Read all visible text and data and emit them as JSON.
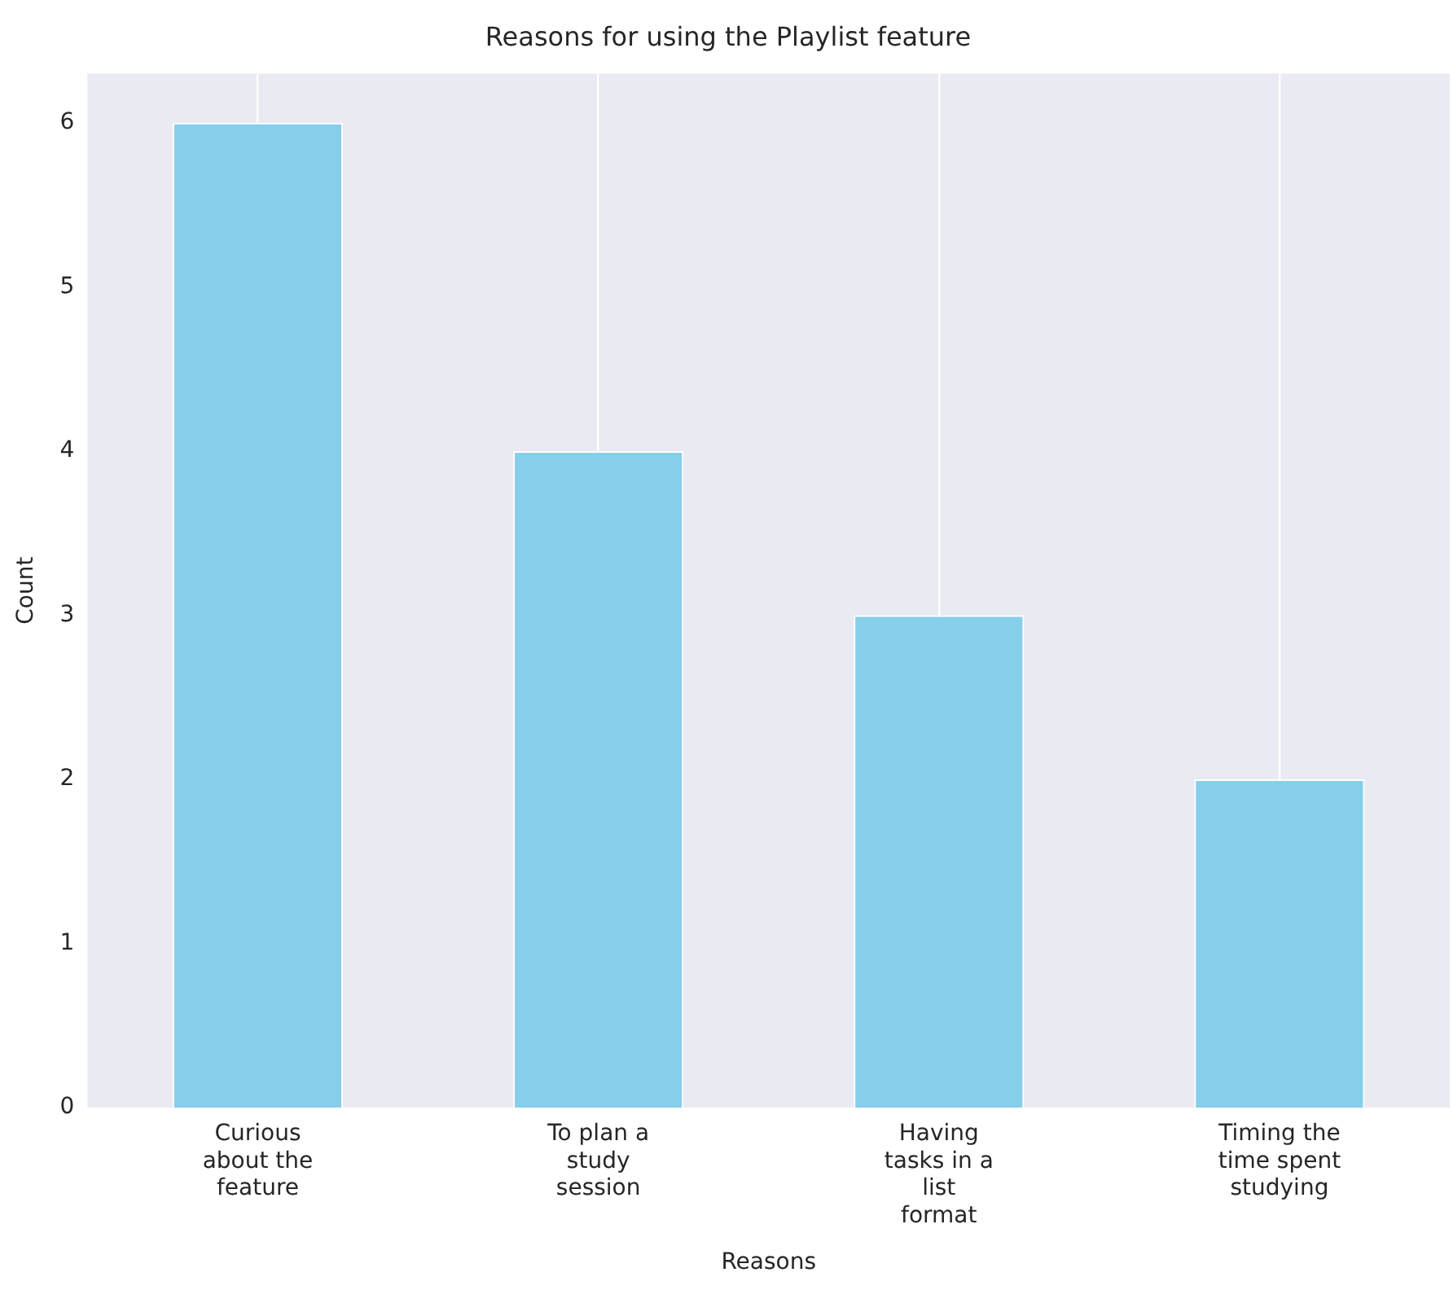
{
  "chart_data": {
    "type": "bar",
    "title": "Reasons for using the Playlist feature",
    "xlabel": "Reasons",
    "ylabel": "Count",
    "categories": [
      "Curious\nabout the\nfeature",
      "To plan a\nstudy\nsession",
      "Having\ntasks in a\nlist\nformat",
      "Timing the\ntime spent\nstudying"
    ],
    "values": [
      6,
      4,
      3,
      2
    ],
    "color": "#87ceeb",
    "ylim": [
      0,
      6.3
    ],
    "yticks": [
      0,
      1,
      2,
      3,
      4,
      5,
      6
    ],
    "grid": "x",
    "legend": false
  }
}
